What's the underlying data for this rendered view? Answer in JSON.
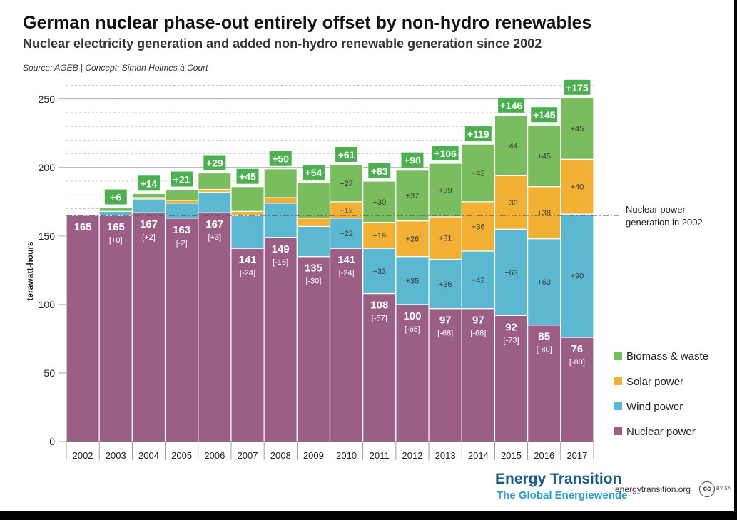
{
  "title": "German nuclear phase-out entirely offset by non-hydro renewables",
  "subtitle": "Nuclear electricity generation and added non-hydro renewable generation since 2002",
  "source": "Source:  AGEB | Concept: Simon Holmes à Court",
  "footer": {
    "brand_line1": "Energy Transition",
    "brand_line2": "The Global Energiewende",
    "website": "energytransition.org",
    "cc_symbol": "cc",
    "license": "BY SA"
  },
  "chart_data": {
    "type": "bar",
    "stacked": true,
    "categories": [
      "2002",
      "2003",
      "2004",
      "2005",
      "2006",
      "2007",
      "2008",
      "2009",
      "2010",
      "2011",
      "2012",
      "2013",
      "2014",
      "2015",
      "2016",
      "2017"
    ],
    "ylabel": "terawatt-hours",
    "xlabel": "",
    "ylim": [
      0,
      260
    ],
    "yticks": [
      0,
      50,
      100,
      150,
      200,
      250
    ],
    "grid": "dashed horizontal",
    "legend_position": "right",
    "series": [
      {
        "name": "Nuclear power",
        "color": "#9b5f86",
        "values": [
          165,
          165,
          167,
          163,
          167,
          141,
          149,
          135,
          141,
          108,
          100,
          97,
          97,
          92,
          85,
          76
        ],
        "labels": [
          "165",
          "165",
          "167",
          "163",
          "167",
          "141",
          "149",
          "135",
          "141",
          "108",
          "100",
          "97",
          "97",
          "92",
          "85",
          "76"
        ],
        "change_labels": [
          "",
          "[+0]",
          "[+2]",
          "[-2]",
          "[+3]",
          "[-24]",
          "[-16]",
          "[-30]",
          "[-24]",
          "[-57]",
          "[-65]",
          "[-68]",
          "[-68]",
          "[-73]",
          "[-80]",
          "[-89]"
        ]
      },
      {
        "name": "Wind power",
        "color": "#5cb7d0",
        "values": [
          0,
          3,
          10,
          11,
          15,
          24,
          25,
          22,
          22,
          33,
          35,
          36,
          42,
          63,
          63,
          90
        ],
        "labels": [
          "",
          "",
          "",
          "",
          "",
          "",
          "",
          "",
          "+22",
          "+33",
          "+35",
          "+36",
          "+42",
          "+63",
          "+63",
          "+90"
        ]
      },
      {
        "name": "Solar power",
        "color": "#f2b134",
        "values": [
          0,
          0,
          1,
          2,
          2,
          3,
          4,
          6,
          12,
          19,
          26,
          31,
          36,
          39,
          38,
          40
        ],
        "labels": [
          "",
          "",
          "",
          "",
          "",
          "",
          "",
          "",
          "+12",
          "+19",
          "+26",
          "+31",
          "+36",
          "+39",
          "+38",
          "+40"
        ]
      },
      {
        "name": "Biomass & waste",
        "color": "#7abd5f",
        "values": [
          0,
          3,
          3,
          8,
          12,
          18,
          21,
          26,
          27,
          30,
          37,
          39,
          42,
          44,
          45,
          45
        ],
        "labels": [
          "",
          "",
          "",
          "",
          "",
          "",
          "",
          "",
          "+27",
          "+30",
          "+37",
          "+39",
          "+42",
          "+44",
          "+45",
          "+45"
        ]
      }
    ],
    "total_added_labels": [
      "",
      "+6",
      "+14",
      "+21",
      "+29",
      "+45",
      "+50",
      "+54",
      "+61",
      "+83",
      "+98",
      "+106",
      "+119",
      "+146",
      "+145",
      "+175"
    ],
    "reference_line": {
      "value": 165,
      "label_line1": "Nuclear power",
      "label_line2": "generation in 2002"
    }
  }
}
